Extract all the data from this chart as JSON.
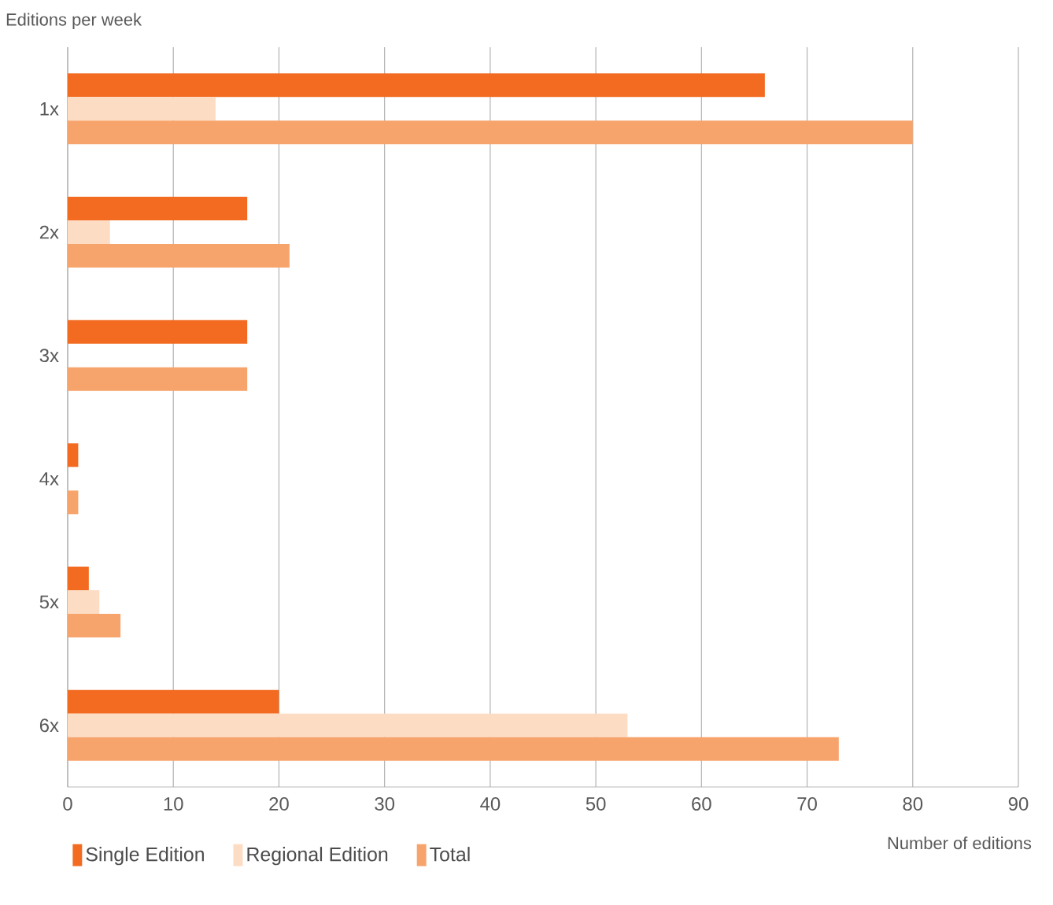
{
  "chart_data": {
    "type": "bar",
    "orientation": "horizontal",
    "ylabel": "Editions per week",
    "xlabel": "Number of editions",
    "categories": [
      "1x",
      "2x",
      "3x",
      "4x",
      "5x",
      "6x"
    ],
    "series": [
      {
        "name": "Single Edition",
        "color": "#f26b21",
        "values": [
          66,
          17,
          17,
          1,
          2,
          20
        ]
      },
      {
        "name": "Regional Edition",
        "color": "#fddcc4",
        "values": [
          14,
          4,
          0,
          0,
          3,
          53
        ]
      },
      {
        "name": "Total",
        "color": "#f7a46c",
        "values": [
          80,
          21,
          17,
          1,
          5,
          73
        ]
      }
    ],
    "xlim": [
      0,
      90
    ],
    "xticks": [
      0,
      10,
      20,
      30,
      40,
      50,
      60,
      70,
      80,
      90
    ],
    "grid": "x",
    "legend": "bottom left"
  }
}
